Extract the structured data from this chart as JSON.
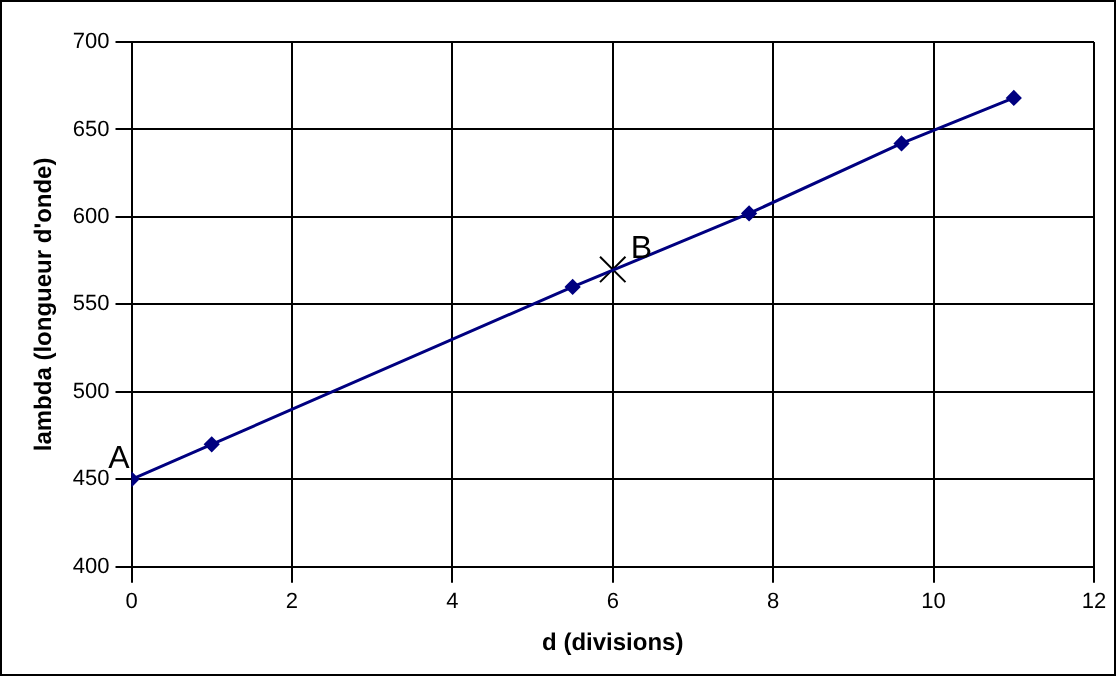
{
  "chart_data": {
    "type": "line",
    "xlabel": "d (divisions)",
    "ylabel": "lambda (longueur d'onde)",
    "series": [
      {
        "color": "#000080",
        "x": [
          0,
          1,
          5.5,
          7.7,
          9.6,
          11
        ],
        "values": [
          450,
          470,
          560,
          602,
          642,
          668
        ],
        "marker": "diamond",
        "line_style": "solid"
      },
      {
        "type": "scatter",
        "color": "#000000",
        "x": [
          6
        ],
        "values": [
          570
        ],
        "marker": "cross"
      }
    ],
    "xlim": [
      0,
      12
    ],
    "xticks": [
      0,
      2,
      4,
      6,
      8,
      10,
      12
    ],
    "ylim": [
      400,
      700
    ],
    "yticks": [
      400,
      450,
      500,
      550,
      600,
      650,
      700
    ],
    "grid": true,
    "legend": false,
    "annotations": [
      {
        "text": "A",
        "x": 0,
        "y": 450
      },
      {
        "text": "B",
        "x": 6,
        "y": 570
      }
    ]
  }
}
